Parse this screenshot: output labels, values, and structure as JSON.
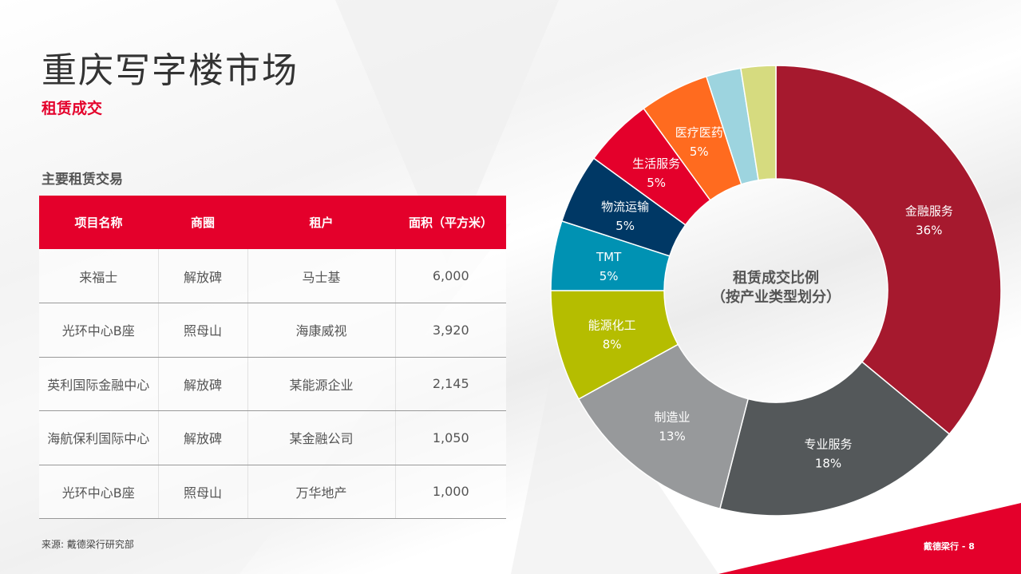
{
  "header": {
    "title": "重庆写字楼市场",
    "subtitle": "租赁成交"
  },
  "table": {
    "section_title": "主要租赁交易",
    "columns": [
      "项目名称",
      "商圈",
      "租户",
      "面积（平方米）"
    ],
    "rows": [
      [
        "来福士",
        "解放碑",
        "马士基",
        "6,000"
      ],
      [
        "光环中心B座",
        "照母山",
        "海康威视",
        "3,920"
      ],
      [
        "英利国际金融中心",
        "解放碑",
        "某能源企业",
        "2,145"
      ],
      [
        "海航保利国际中心",
        "解放碑",
        "某金融公司",
        "1,050"
      ],
      [
        "光环中心B座",
        "照母山",
        "万华地产",
        "1,000"
      ]
    ]
  },
  "source": "来源: 戴德梁行研究部",
  "footer": "戴德梁行 - 8",
  "chart_data": {
    "type": "pie",
    "donut": true,
    "title": [
      "租赁成交比例",
      "（按产业类型划分）"
    ],
    "slices": [
      {
        "name": "金融服务",
        "label": "36%",
        "value": 36,
        "color": "#a6192e"
      },
      {
        "name": "专业服务",
        "label": "18%",
        "value": 18,
        "color": "#54585a"
      },
      {
        "name": "制造业",
        "label": "13%",
        "value": 13,
        "color": "#97999b"
      },
      {
        "name": "能源化工",
        "label": "8%",
        "value": 8,
        "color": "#b5bd00"
      },
      {
        "name": "TMT",
        "label": "5%",
        "value": 5,
        "color": "#0092b3"
      },
      {
        "name": "物流运输",
        "label": "5%",
        "value": 5,
        "color": "#003865"
      },
      {
        "name": "生活服务",
        "label": "5%",
        "value": 5,
        "color": "#e4002b"
      },
      {
        "name": "医疗医药",
        "label": "5%",
        "value": 5,
        "color": "#ff6b1f"
      },
      {
        "name": "",
        "label": "",
        "value": 2.5,
        "color": "#9dd4df"
      },
      {
        "name": "",
        "label": "",
        "value": 2.5,
        "color": "#d6db7f"
      }
    ]
  }
}
